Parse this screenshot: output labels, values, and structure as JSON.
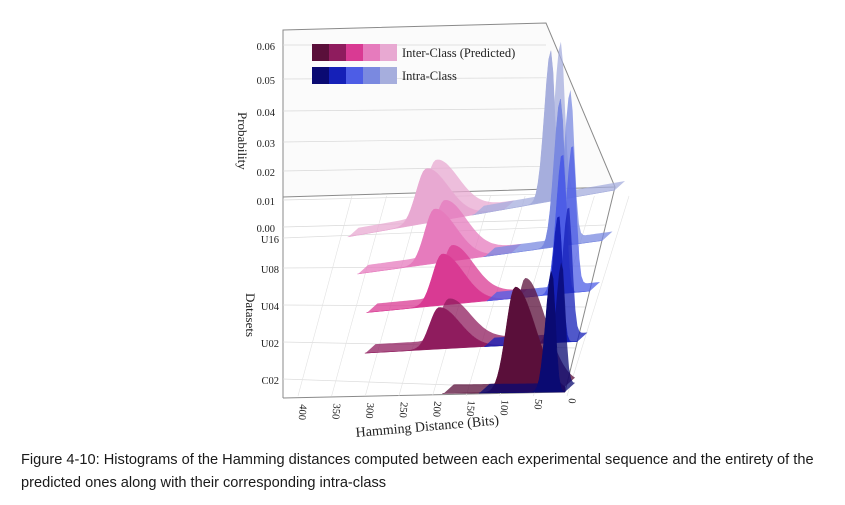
{
  "caption": "Figure 4-10: Histograms of the Hamming distances computed between each experimental sequence and the entirety of the predicted ones along with their corresponding intra-class",
  "chart_data": {
    "type": "area",
    "subtype": "3d-waterfall",
    "zlabel": "Probability",
    "ylabel": "Datasets",
    "xlabel": "Hamming Distance (Bits)",
    "z_ticks": [
      "0.00",
      "0.01",
      "0.02",
      "0.03",
      "0.04",
      "0.05",
      "0.06"
    ],
    "z_range": [
      0,
      0.06
    ],
    "x_ticks": [
      "0",
      "50",
      "100",
      "150",
      "200",
      "250",
      "300",
      "350",
      "400"
    ],
    "x_range": [
      0,
      400
    ],
    "datasets": [
      "C02",
      "U02",
      "U04",
      "U08",
      "U16"
    ],
    "legend": {
      "position": "top-left"
    },
    "series": [
      {
        "name": "Inter-Class (Predicted)",
        "colors": [
          "#5a0f3a",
          "#8f1c5e",
          "#d93a93",
          "#e67bbd",
          "#e8a9d2"
        ],
        "peaks": [
          {
            "dataset": "C02",
            "x": 75,
            "peak": 0.033
          },
          {
            "dataset": "U02",
            "x": 205,
            "peak": 0.013
          },
          {
            "dataset": "U04",
            "x": 215,
            "peak": 0.016
          },
          {
            "dataset": "U08",
            "x": 240,
            "peak": 0.017
          },
          {
            "dataset": "U16",
            "x": 265,
            "peak": 0.017
          }
        ]
      },
      {
        "name": "Intra-Class",
        "colors": [
          "#0a0a72",
          "#1520b8",
          "#4d5de6",
          "#7a89e0",
          "#a6aedd"
        ],
        "peaks": [
          {
            "dataset": "C02",
            "x": 20,
            "peak": 0.038
          },
          {
            "dataset": "U02",
            "x": 28,
            "peak": 0.04
          },
          {
            "dataset": "U04",
            "x": 40,
            "peak": 0.044
          },
          {
            "dataset": "U08",
            "x": 60,
            "peak": 0.046
          },
          {
            "dataset": "U16",
            "x": 90,
            "peak": 0.047
          }
        ]
      }
    ]
  }
}
